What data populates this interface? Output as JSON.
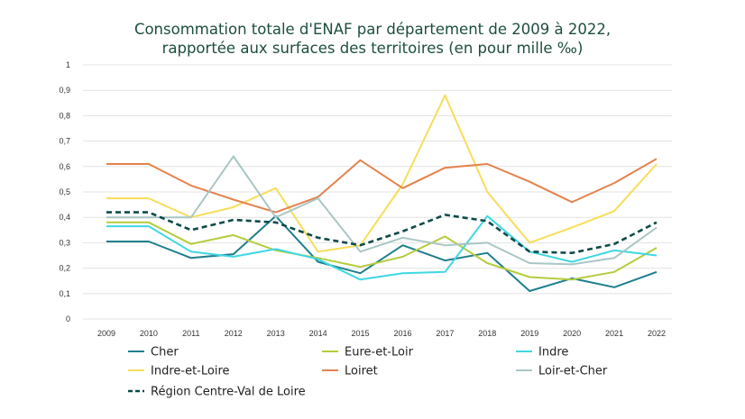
{
  "chart_data": {
    "type": "line",
    "title_line1": "Consommation totale d'ENAF par département de 2009 à 2022,",
    "title_line2": "rapportée aux surfaces des territoires (en pour mille ‰)",
    "xlabel": "",
    "ylabel": "",
    "ylim": [
      0,
      1
    ],
    "y_ticks": [
      "0",
      "0,1",
      "0,2",
      "0,3",
      "0,4",
      "0,5",
      "0,6",
      "0,7",
      "0,8",
      "0,9",
      "1"
    ],
    "categories": [
      "2009",
      "2010",
      "2011",
      "2012",
      "2013",
      "2014",
      "2015",
      "2016",
      "2017",
      "2018",
      "2019",
      "2020",
      "2021",
      "2022"
    ],
    "legend_position": "bottom",
    "series": [
      {
        "name": "Cher",
        "color": "#1e7f8c",
        "dashed": false,
        "values": [
          0.305,
          0.305,
          0.24,
          0.255,
          0.405,
          0.225,
          0.18,
          0.29,
          0.23,
          0.26,
          0.11,
          0.16,
          0.125,
          0.185
        ]
      },
      {
        "name": "Eure-et-Loir",
        "color": "#b5cc3c",
        "dashed": false,
        "values": [
          0.38,
          0.38,
          0.295,
          0.33,
          0.27,
          0.24,
          0.205,
          0.245,
          0.325,
          0.22,
          0.165,
          0.155,
          0.185,
          0.28
        ]
      },
      {
        "name": "Indre",
        "color": "#3fd7e4",
        "dashed": false,
        "values": [
          0.365,
          0.365,
          0.265,
          0.245,
          0.275,
          0.235,
          0.155,
          0.18,
          0.185,
          0.405,
          0.265,
          0.225,
          0.27,
          0.25
        ]
      },
      {
        "name": "Indre-et-Loire",
        "color": "#f7dd5a",
        "dashed": false,
        "values": [
          0.475,
          0.475,
          0.4,
          0.44,
          0.515,
          0.265,
          0.29,
          0.53,
          0.88,
          0.5,
          0.3,
          0.36,
          0.425,
          0.61
        ]
      },
      {
        "name": "Loiret",
        "color": "#e3824d",
        "dashed": false,
        "values": [
          0.61,
          0.61,
          0.525,
          0.47,
          0.42,
          0.48,
          0.625,
          0.515,
          0.595,
          0.61,
          0.54,
          0.46,
          0.535,
          0.63
        ]
      },
      {
        "name": "Loir-et-Cher",
        "color": "#a9c6c5",
        "dashed": false,
        "values": [
          0.4,
          0.4,
          0.4,
          0.64,
          0.4,
          0.475,
          0.265,
          0.32,
          0.29,
          0.3,
          0.22,
          0.215,
          0.24,
          0.36
        ]
      },
      {
        "name": "Région Centre-Val de Loire",
        "color": "#0e4a4a",
        "dashed": true,
        "values": [
          0.42,
          0.42,
          0.35,
          0.39,
          0.38,
          0.32,
          0.29,
          0.345,
          0.41,
          0.385,
          0.265,
          0.26,
          0.295,
          0.38
        ]
      }
    ]
  }
}
